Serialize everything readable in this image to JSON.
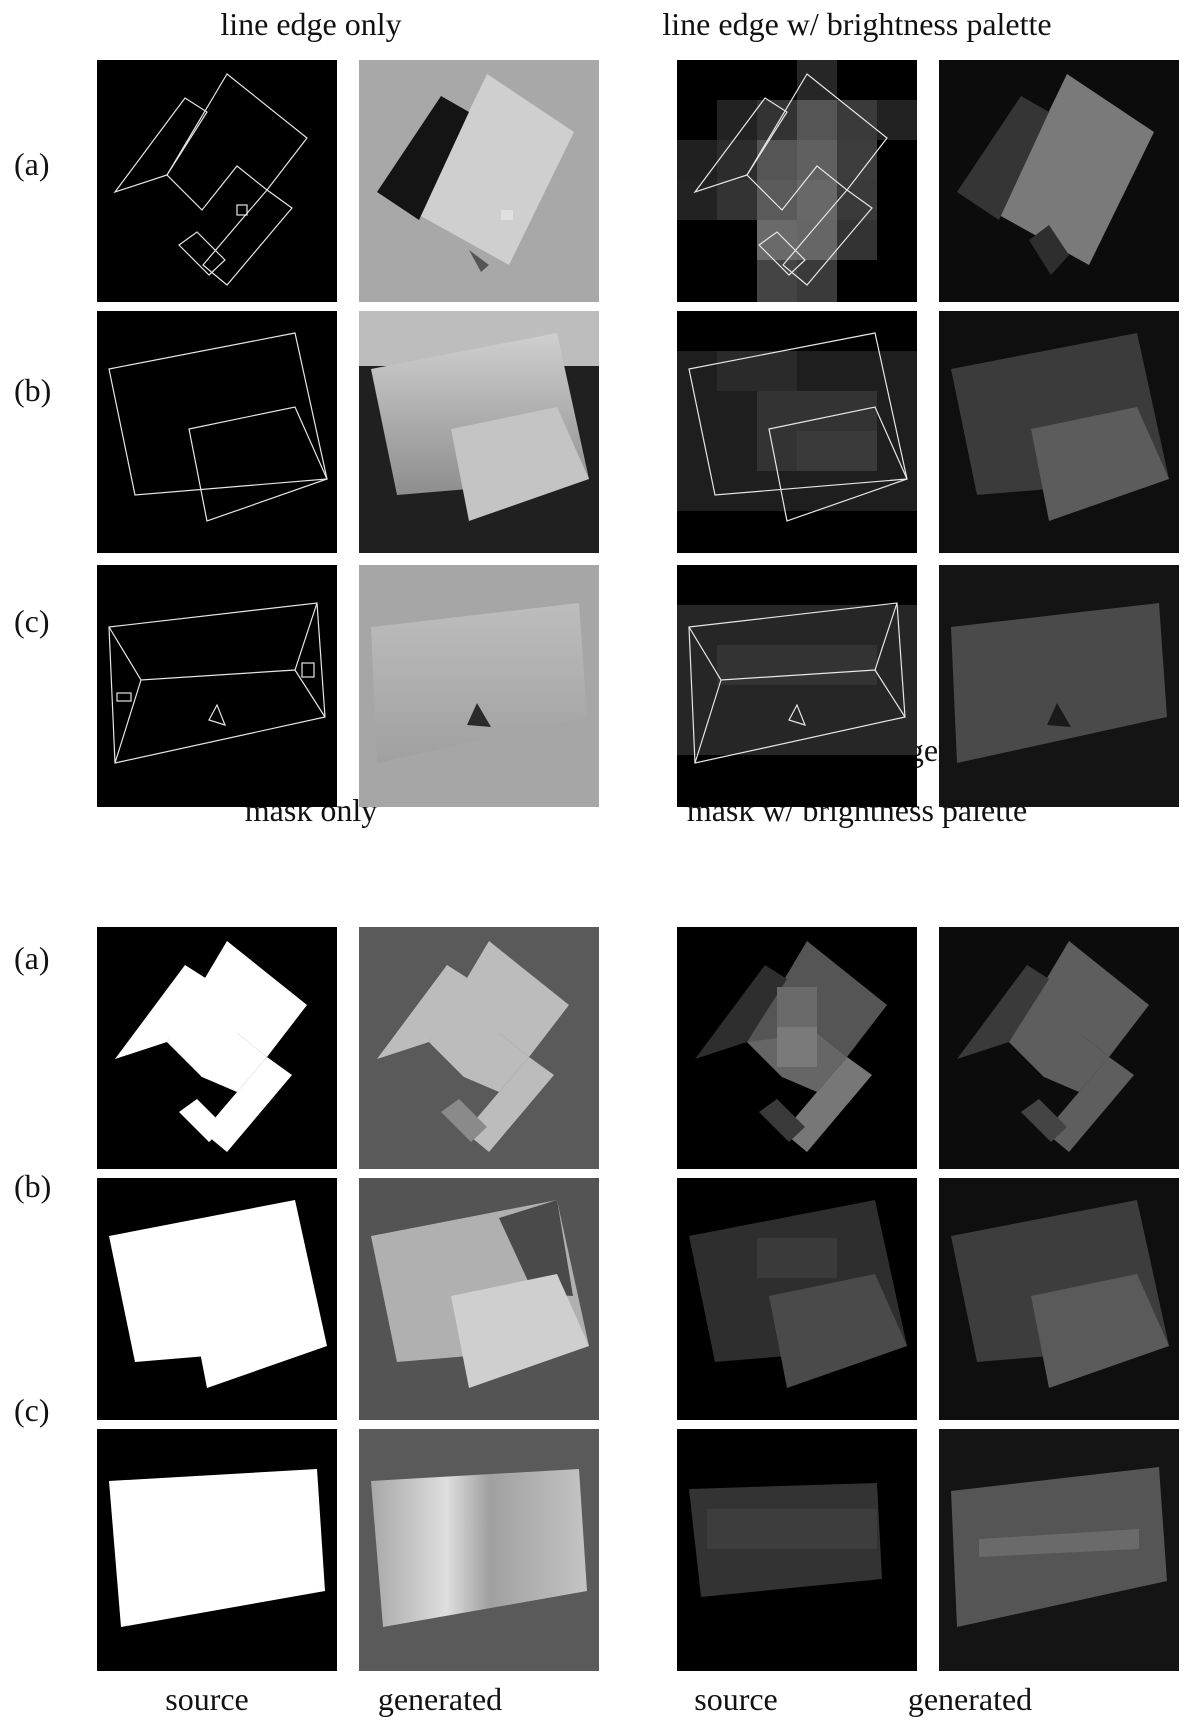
{
  "figure": {
    "sections": [
      {
        "id": "line-edge-only",
        "title": "line edge only",
        "rows": [
          "(a)",
          "(b)",
          "(c)"
        ],
        "column_labels": [
          "source",
          "generated"
        ]
      },
      {
        "id": "line-edge-palette",
        "title": "line edge w/ brightness palette",
        "column_labels": [
          "source",
          "generated"
        ]
      },
      {
        "id": "mask-only",
        "title": "mask only",
        "rows": [
          "(a)",
          "(b)",
          "(c)"
        ],
        "column_labels": [
          "source",
          "generated"
        ]
      },
      {
        "id": "mask-palette",
        "title": "mask w/ brightness palette",
        "column_labels": [
          "source",
          "generated"
        ]
      }
    ]
  },
  "colors": {
    "background": "#ffffff",
    "panel": "#000000",
    "edge_line": "#e6e6e6",
    "mask_fill": "#ffffff",
    "generated_background": "#a9a9a9"
  }
}
